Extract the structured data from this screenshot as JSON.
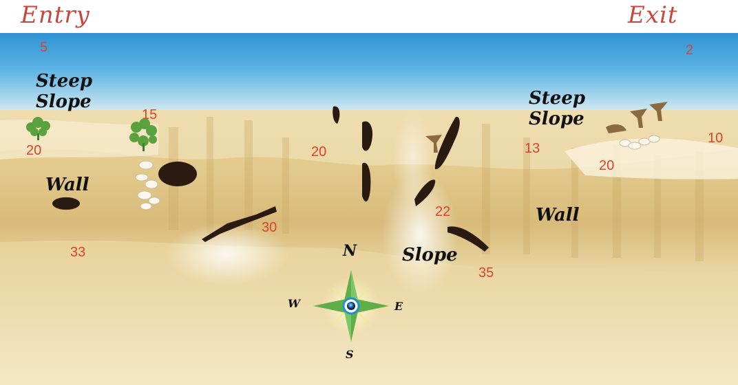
{
  "labels": {
    "entry": "Entry",
    "exit": "Exit"
  },
  "features": {
    "steep_slope_left": {
      "line1": "Steep",
      "line2": "Slope"
    },
    "steep_slope_right": {
      "line1": "Steep",
      "line2": "Slope"
    },
    "wall_left": "Wall",
    "wall_right": "Wall",
    "slope_center": "Slope"
  },
  "depths": {
    "entry_depth": "5",
    "exit_depth": "2",
    "d_15": "15",
    "d_20_left": "20",
    "d_20_mid": "20",
    "d_13": "13",
    "d_10": "10",
    "d_20_right": "20",
    "d_33": "33",
    "d_30": "30",
    "d_22": "22",
    "d_35": "35"
  },
  "compass": {
    "n": "N",
    "s": "S",
    "e": "E",
    "w": "W"
  },
  "colors": {
    "water_top": "#7cc3ea",
    "water_deep": "#2e94d6",
    "sand_light": "#f3e6bf",
    "sand_mid": "#e4cd92",
    "wall_shadow": "#b89a5e",
    "label_red": "#d8452e",
    "compass_green": "#5fae4a"
  }
}
